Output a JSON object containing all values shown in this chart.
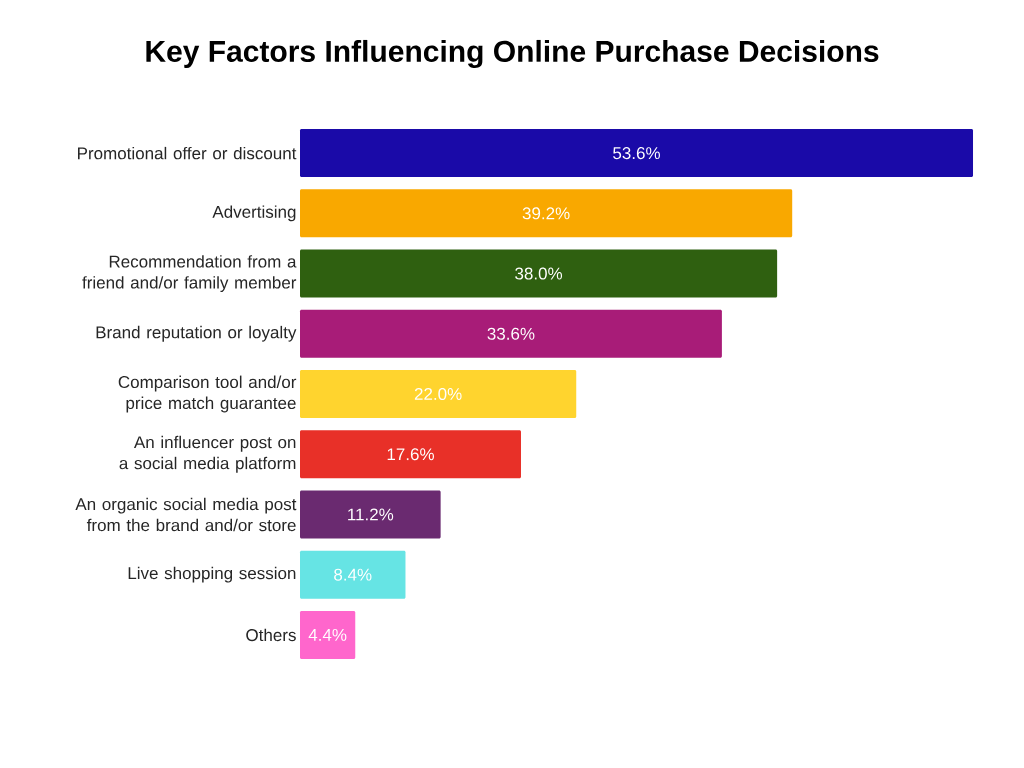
{
  "chart_data": {
    "type": "bar",
    "orientation": "horizontal",
    "title": "Key Factors Influencing Online Purchase Decisions",
    "categories": [
      "Promotional offer or discount",
      "Advertising",
      "Recommendation from a friend and/or family member",
      "Brand reputation or loyalty",
      "Comparison tool and/or price match guarantee",
      "An influencer post on a social media platform",
      "An organic social media post from the brand and/or store",
      "Live shopping session",
      "Others"
    ],
    "values": [
      53.6,
      39.2,
      38.0,
      33.6,
      22.0,
      17.6,
      11.2,
      8.4,
      4.4
    ],
    "value_labels": [
      "53.6%",
      "39.2%",
      "38.0%",
      "33.6%",
      "22.0%",
      "17.6%",
      "11.2%",
      "8.4%",
      "4.4%"
    ],
    "colors": [
      "#1a0aa8",
      "#f9a800",
      "#2f6010",
      "#a81c78",
      "#ffd42e",
      "#e83028",
      "#6a2a70",
      "#66e4e4",
      "#ff66cc"
    ]
  }
}
